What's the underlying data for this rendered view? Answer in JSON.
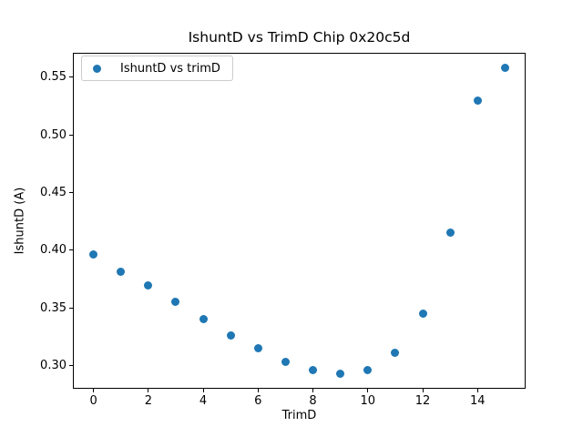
{
  "figure": {
    "background_color": "#ffffff",
    "spine_color": "#000000",
    "text_color": "#000000",
    "legend_border_color": "#cccccc"
  },
  "chart_data": {
    "type": "scatter",
    "title": "IshuntD vs TrimD Chip 0x20c5d",
    "xlabel": "TrimD",
    "ylabel": "IshuntD (A)",
    "legend": [
      "IshuntD vs trimD"
    ],
    "legend_position": "upper left",
    "series": [
      {
        "name": "IshuntD vs trimD",
        "x": [
          0,
          1,
          2,
          3,
          4,
          5,
          6,
          7,
          8,
          9,
          10,
          11,
          12,
          13,
          14,
          15
        ],
        "y": [
          0.396,
          0.381,
          0.369,
          0.355,
          0.34,
          0.326,
          0.315,
          0.303,
          0.296,
          0.293,
          0.296,
          0.311,
          0.345,
          0.415,
          0.53,
          0.558
        ]
      }
    ],
    "xlim": [
      -0.75,
      15.75
    ],
    "ylim": [
      0.2797,
      0.5713
    ],
    "x_ticks": [
      0,
      2,
      4,
      6,
      8,
      10,
      12,
      14
    ],
    "x_tick_labels": [
      "0",
      "2",
      "4",
      "6",
      "8",
      "10",
      "12",
      "14"
    ],
    "y_ticks": [
      0.3,
      0.35,
      0.4,
      0.45,
      0.5,
      0.55
    ],
    "y_tick_labels": [
      "0.30",
      "0.35",
      "0.40",
      "0.45",
      "0.50",
      "0.55"
    ],
    "grid": false,
    "marker_color": "#1f77b4",
    "marker_size_px": 9
  }
}
